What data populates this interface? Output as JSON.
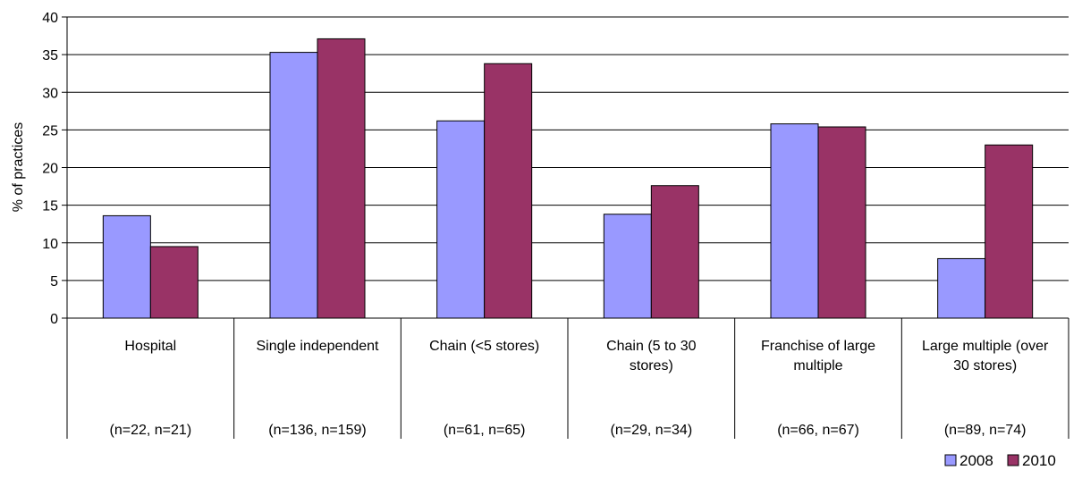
{
  "chart_data": {
    "type": "bar",
    "title": "",
    "xlabel": "",
    "ylabel": "% of practices",
    "ylim": [
      0,
      40
    ],
    "yticks": [
      0,
      5,
      10,
      15,
      20,
      25,
      30,
      35,
      40
    ],
    "grid": true,
    "legend_position": "bottom-right",
    "categories": [
      "Hospital",
      "Single independent",
      "Chain (<5 stores)",
      "Chain (5 to 30 stores)",
      "Franchise of large multiple",
      "Large multiple (over 30 stores)"
    ],
    "category_lines": [
      [
        "Hospital"
      ],
      [
        "Single independent"
      ],
      [
        "Chain (<5 stores)"
      ],
      [
        "Chain (5 to 30",
        "stores)"
      ],
      [
        "Franchise of large",
        "multiple"
      ],
      [
        "Large multiple (over",
        "30 stores)"
      ]
    ],
    "sample_sizes": [
      "(n=22, n=21)",
      "(n=136, n=159)",
      "(n=61, n=65)",
      "(n=29, n=34)",
      "(n=66, n=67)",
      "(n=89, n=74)"
    ],
    "series": [
      {
        "name": "2008",
        "color": "#9999ff",
        "values": [
          13.6,
          35.3,
          26.2,
          13.8,
          25.8,
          7.9
        ]
      },
      {
        "name": "2010",
        "color": "#993366",
        "values": [
          9.5,
          37.1,
          33.8,
          17.6,
          25.4,
          23.0
        ]
      }
    ]
  }
}
